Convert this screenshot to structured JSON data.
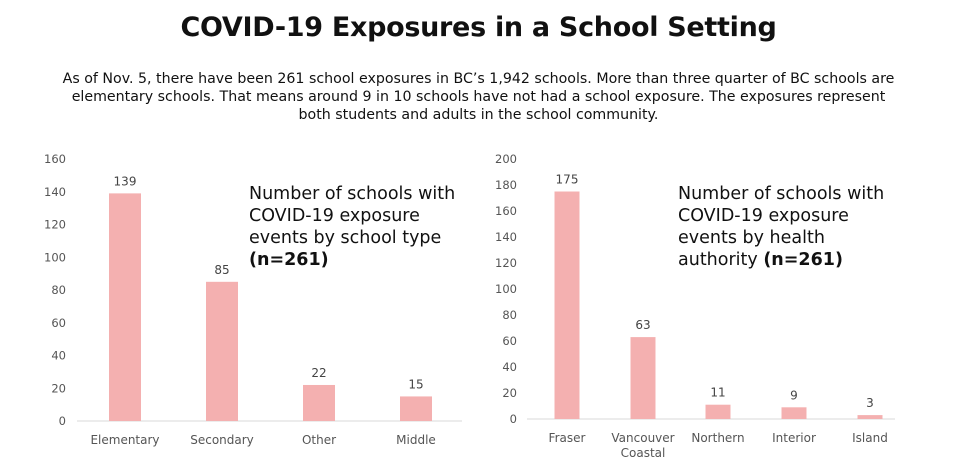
{
  "header": {
    "title": "COVID-19 Exposures in a School Setting",
    "intro_lines": [
      "As of Nov. 5, there have been 261 school exposures in BC’s 1,942 schools. More than three quarter of BC schools are",
      "elementary schools. That means around 9 in 10 schools have not had a school exposure. The exposures represent",
      "both students and adults in the school community."
    ]
  },
  "colors": {
    "bar": "#f4b0b0",
    "axis": "#d9d9d9",
    "text": "#111111"
  },
  "chart_data": [
    {
      "type": "bar",
      "caption_lines": [
        "Number of schools with",
        "COVID-19 exposure",
        "events by school type"
      ],
      "caption_n": "(n=261)",
      "categories": [
        [
          "Elementary"
        ],
        [
          "Secondary"
        ],
        [
          "Other"
        ],
        [
          "Middle"
        ]
      ],
      "values": [
        139,
        85,
        22,
        15
      ],
      "ylim": [
        0,
        160
      ],
      "yticks": [
        0,
        20,
        40,
        60,
        80,
        100,
        120,
        140,
        160
      ],
      "grid": false
    },
    {
      "type": "bar",
      "caption_lines": [
        "Number of schools with",
        "COVID-19 exposure",
        "events by health"
      ],
      "caption_last_prefix": "authority ",
      "caption_n": "(n=261)",
      "categories": [
        [
          "Fraser"
        ],
        [
          "Vancouver",
          "Coastal"
        ],
        [
          "Northern"
        ],
        [
          "Interior"
        ],
        [
          "Island"
        ]
      ],
      "values": [
        175,
        63,
        11,
        9,
        3
      ],
      "ylim": [
        0,
        200
      ],
      "yticks": [
        0,
        20,
        40,
        60,
        80,
        100,
        120,
        140,
        160,
        180,
        200
      ],
      "grid": false
    }
  ]
}
